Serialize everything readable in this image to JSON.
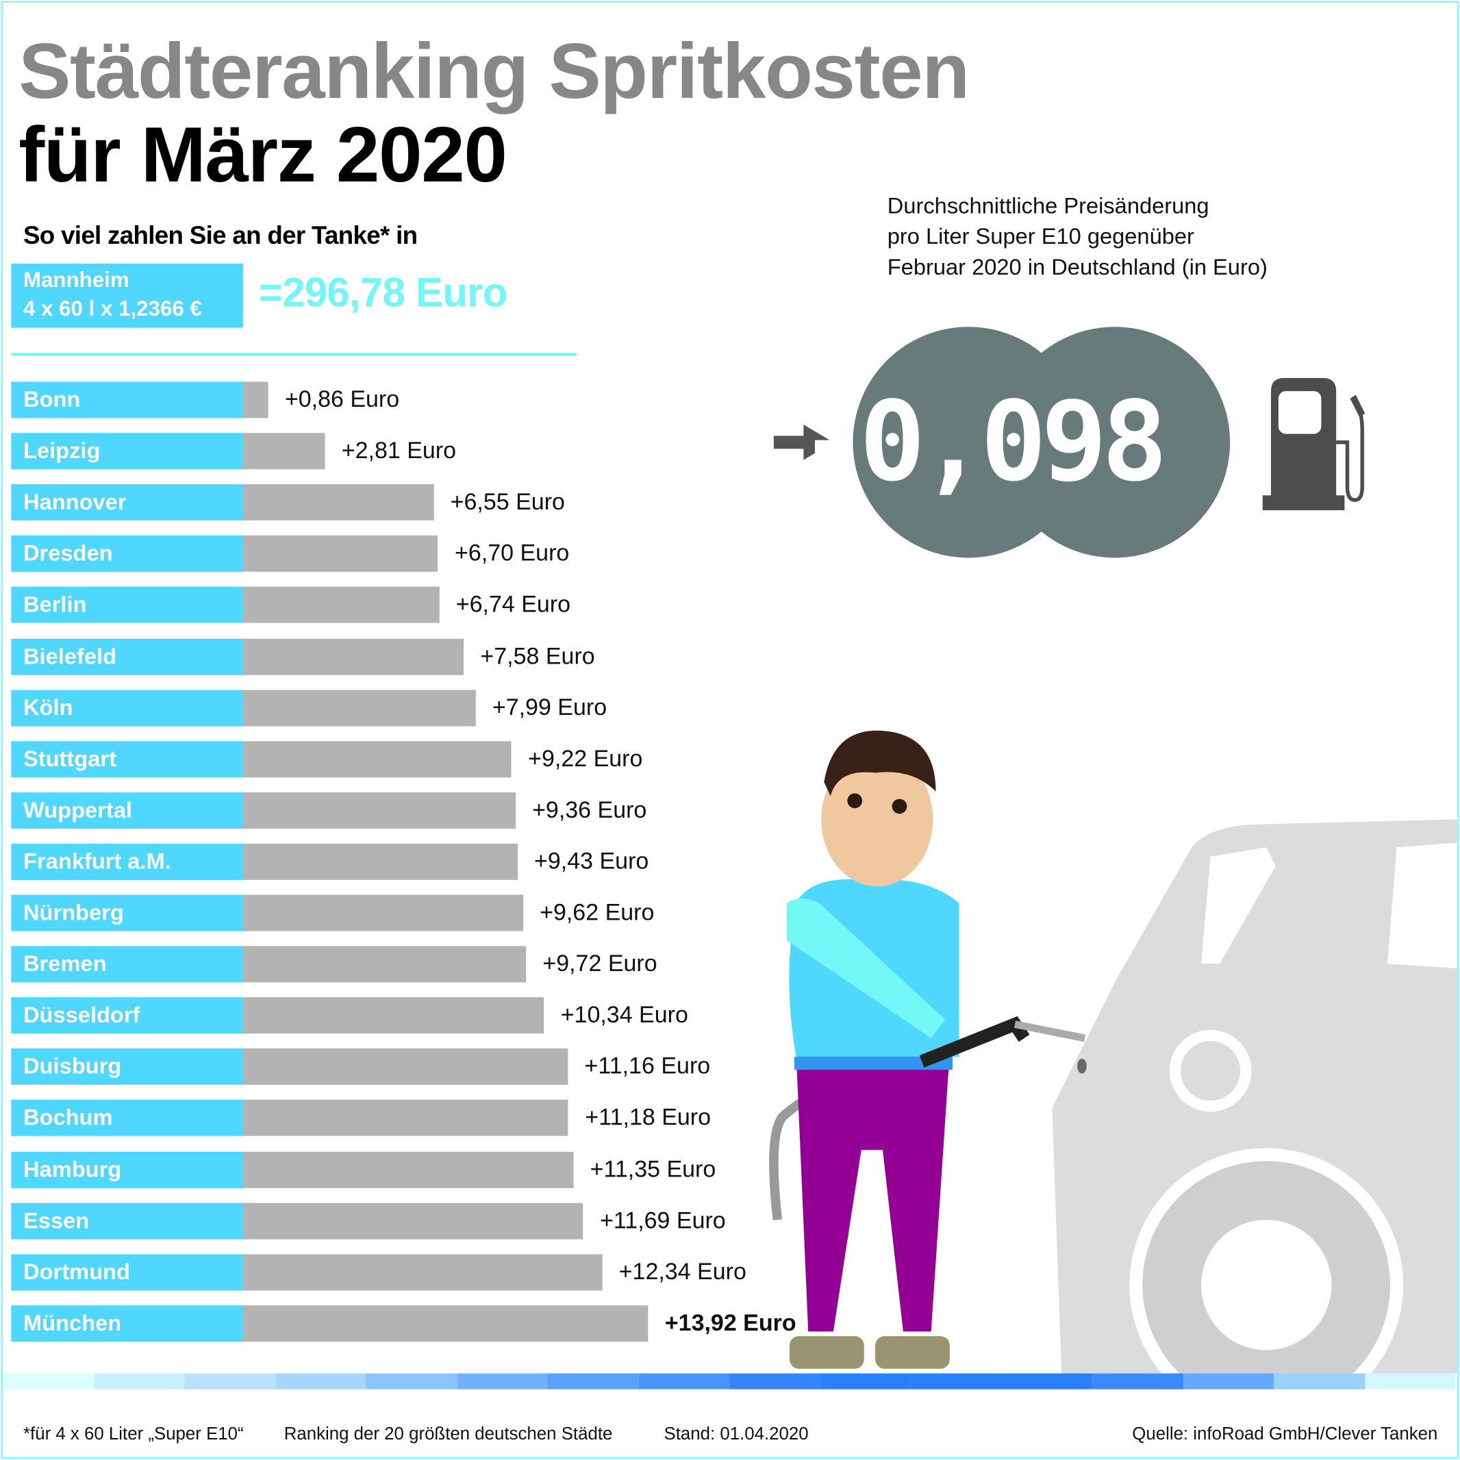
{
  "title_line1": "Städteranking Spritkosten",
  "title_line2": "für März 2020",
  "subtitle": "So viel zahlen Sie an der Tanke* in",
  "highlight": {
    "city": "Mannheim",
    "formula": "4 x 60 l x 1,2366 €",
    "total": "=296,78 Euro"
  },
  "description": [
    "Durchschnittliche Preisänderung",
    "pro Liter Super E10 gegenüber",
    "Februar 2020 in Deutschland (in Euro)"
  ],
  "display_value": "-0,098 l",
  "colors": {
    "label_bg": "#4fd7ff",
    "bar": "#b3b3b3",
    "total": "#73f6f6",
    "title_grey": "#878787",
    "display": "#677b7b"
  },
  "chart_data": {
    "type": "bar",
    "orientation": "horizontal",
    "categories": [
      "Bonn",
      "Leipzig",
      "Hannover",
      "Dresden",
      "Berlin",
      "Bielefeld",
      "Köln",
      "Stuttgart",
      "Wuppertal",
      "Frankfurt a.M.",
      "Nürnberg",
      "Bremen",
      "Düsseldorf",
      "Duisburg",
      "Bochum",
      "Hamburg",
      "Essen",
      "Dortmund",
      "München"
    ],
    "values": [
      0.86,
      2.81,
      6.55,
      6.7,
      6.74,
      7.58,
      7.99,
      9.22,
      9.36,
      9.43,
      9.62,
      9.72,
      10.34,
      11.16,
      11.18,
      11.35,
      11.69,
      12.34,
      13.92
    ],
    "labels": [
      "+0,86 Euro",
      "+2,81 Euro",
      "+6,55 Euro",
      "+6,70 Euro",
      "+6,74 Euro",
      "+7,58 Euro",
      "+7,99 Euro",
      "+9,22 Euro",
      "+9,36 Euro",
      "+9,43 Euro",
      "+9,62 Euro",
      "+9,72 Euro",
      "+10,34 Euro",
      "+11,16 Euro",
      "+11,18 Euro",
      "+11,35 Euro",
      "+11,69 Euro",
      "+12,34 Euro",
      "+13,92 Euro"
    ],
    "unit": "Euro",
    "grid": false
  },
  "footer": {
    "note": "*für 4 x 60 Liter „Super E10“",
    "ranking": "Ranking der 20 größten deutschen Städte",
    "date": "Stand: 01.04.2020",
    "source": "Quelle: infoRoad GmbH/Clever Tanken"
  }
}
